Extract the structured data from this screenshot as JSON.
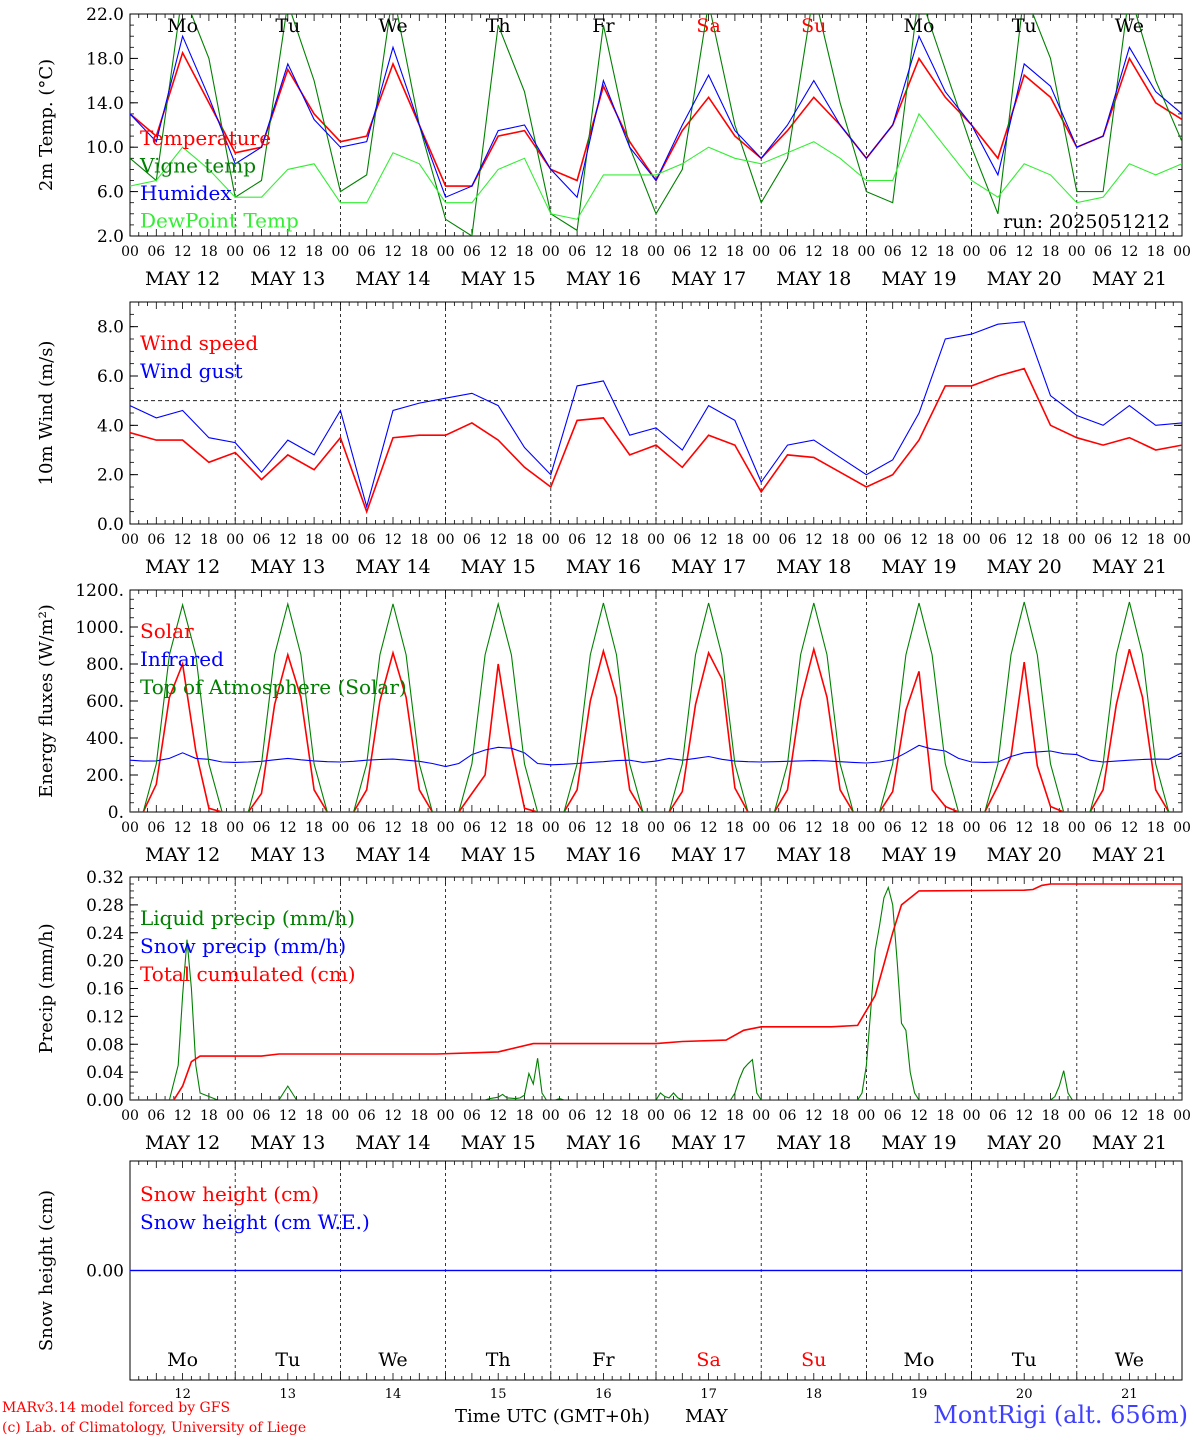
{
  "meta": {
    "run": "run: 2025051212",
    "credit_line1": "MARv3.14 model forced by GFS",
    "credit_line2": "(c) Lab. of Climatology, University of Liege",
    "x_title": "Time UTC (GMT+0h)",
    "month": "MAY",
    "station": "MontRigi (alt. 656m)"
  },
  "colors": {
    "red": "#ff0000",
    "green": "#008000",
    "blue": "#0000ff",
    "lightgreen": "#33ee33",
    "weekend": "#ff0000",
    "station": "#3f3fff"
  },
  "days": {
    "weekday": [
      "Mo",
      "Tu",
      "We",
      "Th",
      "Fr",
      "Sa",
      "Su",
      "Mo",
      "Tu",
      "We"
    ],
    "weekend": [
      false,
      false,
      false,
      false,
      false,
      true,
      true,
      false,
      false,
      false
    ],
    "date_labels": [
      "MAY 12",
      "MAY 13",
      "MAY 14",
      "MAY 15",
      "MAY 16",
      "MAY 17",
      "MAY 18",
      "MAY 19",
      "MAY 20",
      "MAY 21"
    ],
    "day_numbers": [
      "12",
      "13",
      "14",
      "15",
      "16",
      "17",
      "18",
      "19",
      "20",
      "21"
    ],
    "hour_ticks": [
      "00",
      "06",
      "12",
      "18"
    ],
    "end_tick": "00"
  },
  "chart_data": [
    {
      "type": "line",
      "ylabel": "2m Temp. (°C)",
      "ylim": [
        2,
        22
      ],
      "ytick_labels": [
        "2.0",
        "6.0",
        "10.0",
        "14.0",
        "18.0",
        "22.0"
      ],
      "x_unit": "hours since May 12 00 UTC",
      "x": [
        0,
        6,
        12,
        18,
        24,
        30,
        36,
        42,
        48,
        54,
        60,
        66,
        72,
        78,
        84,
        90,
        96,
        102,
        108,
        114,
        120,
        126,
        132,
        138,
        144,
        150,
        156,
        162,
        168,
        174,
        180,
        186,
        192,
        198,
        204,
        210,
        216,
        222,
        228,
        234,
        240
      ],
      "series": [
        {
          "name": "Temperature",
          "color": "red",
          "values": [
            13,
            11,
            18.5,
            14,
            9.5,
            10,
            17,
            13,
            10.5,
            11,
            17.5,
            12,
            6.5,
            6.5,
            11,
            11.5,
            8,
            7,
            15.5,
            10.5,
            7,
            11.5,
            14.5,
            11,
            9,
            11.5,
            14.5,
            12,
            9,
            12,
            18,
            14.5,
            12,
            9,
            16.5,
            14.5,
            10,
            11,
            18,
            14,
            12.5
          ]
        },
        {
          "name": "Vigne temp",
          "color": "green",
          "values": [
            9,
            7,
            24,
            18,
            5.5,
            7,
            23,
            16,
            6,
            7.5,
            24,
            12,
            3.5,
            2,
            21,
            15,
            4,
            2.5,
            21,
            10,
            4,
            8,
            23,
            12,
            5,
            9,
            24,
            14,
            6,
            5,
            24,
            17,
            10,
            4,
            24,
            18,
            6,
            6,
            24,
            16,
            10.5
          ]
        },
        {
          "name": "Humidex",
          "color": "blue",
          "values": [
            13,
            10.5,
            20,
            14.5,
            8.5,
            10,
            17.5,
            12.5,
            10,
            10.5,
            19,
            12,
            5.5,
            6.5,
            11.5,
            12,
            8,
            5.5,
            16,
            10,
            7,
            12,
            16.5,
            11.5,
            9,
            12,
            16,
            12,
            9,
            12,
            20,
            15,
            12,
            7.5,
            17.5,
            15.5,
            10,
            11,
            19,
            15,
            13
          ]
        },
        {
          "name": "DewPoint Temp",
          "color": "lightgreen",
          "values": [
            6.5,
            7,
            10,
            8,
            5.5,
            5.5,
            8,
            8.5,
            5,
            5,
            9.5,
            8.5,
            5,
            5,
            8,
            9,
            4,
            3.5,
            7.5,
            7.5,
            7.5,
            8.5,
            10,
            9,
            8.5,
            9.5,
            10.5,
            9,
            7,
            7,
            13,
            10,
            7,
            5.5,
            8.5,
            7.5,
            5,
            5.5,
            8.5,
            7.5,
            8.5
          ]
        }
      ],
      "legend": [
        "Temperature",
        "Vigne temp",
        "Humidex",
        "DewPoint Temp"
      ],
      "legend_position": "top-left"
    },
    {
      "type": "line",
      "ylabel": "10m Wind (m/s)",
      "ylim": [
        0,
        9
      ],
      "ytick_labels": [
        "0.0",
        "2.0",
        "4.0",
        "6.0",
        "8.0"
      ],
      "reference_line": 5,
      "x_unit": "hours since May 12 00 UTC",
      "x": [
        0,
        6,
        12,
        18,
        24,
        30,
        36,
        42,
        48,
        54,
        60,
        66,
        72,
        78,
        84,
        90,
        96,
        102,
        108,
        114,
        120,
        126,
        132,
        138,
        144,
        150,
        156,
        162,
        168,
        174,
        180,
        186,
        192,
        198,
        204,
        210,
        216,
        222,
        228,
        234,
        240
      ],
      "series": [
        {
          "name": "Wind speed",
          "color": "red",
          "values": [
            3.7,
            3.4,
            3.4,
            2.5,
            2.9,
            1.8,
            2.8,
            2.2,
            3.5,
            0.5,
            3.5,
            3.6,
            3.6,
            4.1,
            3.4,
            2.3,
            1.5,
            4.2,
            4.3,
            2.8,
            3.2,
            2.3,
            3.6,
            3.2,
            1.3,
            2.8,
            2.7,
            2.1,
            1.5,
            2.0,
            3.4,
            5.6,
            5.6,
            6.0,
            6.3,
            4.0,
            3.5,
            3.2,
            3.5,
            3.0,
            3.2
          ]
        },
        {
          "name": "Wind gust",
          "color": "blue",
          "values": [
            4.8,
            4.3,
            4.6,
            3.5,
            3.3,
            2.1,
            3.4,
            2.8,
            4.6,
            0.7,
            4.6,
            4.9,
            5.1,
            5.3,
            4.8,
            3.1,
            2.0,
            5.6,
            5.8,
            3.6,
            3.9,
            3.0,
            4.8,
            4.2,
            1.7,
            3.2,
            3.4,
            2.7,
            2.0,
            2.6,
            4.5,
            7.5,
            7.7,
            8.1,
            8.2,
            5.2,
            4.4,
            4.0,
            4.8,
            4.0,
            4.1
          ]
        }
      ],
      "legend": [
        "Wind speed",
        "Wind gust"
      ],
      "legend_position": "top-left"
    },
    {
      "type": "line",
      "ylabel": "Energy fluxes (W/m²)",
      "ylim": [
        0,
        1200
      ],
      "ytick_labels": [
        "0.",
        "200.",
        "400.",
        "600.",
        "800.",
        "1000.",
        "1200."
      ],
      "x_unit": "hours since May 12 00 UTC",
      "x": [
        0,
        3,
        6,
        9,
        12,
        15,
        18,
        21,
        24,
        27,
        30,
        33,
        36,
        39,
        42,
        45,
        48,
        51,
        54,
        57,
        60,
        63,
        66,
        69,
        72,
        75,
        78,
        81,
        84,
        87,
        90,
        93,
        96,
        99,
        102,
        105,
        108,
        111,
        114,
        117,
        120,
        123,
        126,
        129,
        132,
        135,
        138,
        141,
        144,
        147,
        150,
        153,
        156,
        159,
        162,
        165,
        168,
        171,
        174,
        177,
        180,
        183,
        186,
        189,
        192,
        195,
        198,
        201,
        204,
        207,
        210,
        213,
        216,
        219,
        222,
        225,
        228,
        231,
        234,
        237,
        240
      ],
      "series": [
        {
          "name": "Solar",
          "color": "red",
          "values": [
            0,
            0,
            150,
            620,
            800,
            330,
            20,
            0,
            0,
            0,
            100,
            580,
            850,
            620,
            120,
            0,
            0,
            0,
            120,
            600,
            860,
            620,
            120,
            0,
            0,
            0,
            100,
            200,
            800,
            350,
            20,
            0,
            0,
            0,
            120,
            600,
            870,
            620,
            120,
            0,
            0,
            0,
            110,
            580,
            860,
            720,
            130,
            0,
            0,
            0,
            120,
            600,
            880,
            620,
            120,
            0,
            0,
            0,
            110,
            550,
            760,
            120,
            30,
            0,
            0,
            0,
            140,
            300,
            810,
            250,
            30,
            0,
            0,
            0,
            120,
            580,
            880,
            620,
            120,
            0,
            0
          ]
        },
        {
          "name": "Infrared",
          "color": "blue",
          "values": [
            280,
            275,
            276,
            290,
            320,
            290,
            285,
            270,
            268,
            270,
            274,
            282,
            290,
            282,
            276,
            272,
            270,
            274,
            280,
            284,
            286,
            280,
            274,
            262,
            246,
            262,
            310,
            335,
            350,
            345,
            320,
            262,
            255,
            258,
            262,
            268,
            272,
            278,
            280,
            268,
            275,
            290,
            280,
            290,
            300,
            285,
            275,
            272,
            270,
            272,
            274,
            276,
            278,
            276,
            272,
            268,
            265,
            270,
            282,
            320,
            360,
            340,
            330,
            290,
            270,
            268,
            270,
            300,
            320,
            325,
            330,
            315,
            310,
            280,
            270,
            275,
            280,
            284,
            286,
            285,
            320
          ]
        },
        {
          "name": "Top of Atmosphere (Solar)",
          "color": "green",
          "values": [
            0,
            0,
            260,
            850,
            1120,
            850,
            260,
            0,
            0,
            0,
            260,
            850,
            1125,
            850,
            260,
            0,
            0,
            0,
            260,
            850,
            1125,
            850,
            260,
            0,
            0,
            0,
            260,
            850,
            1125,
            850,
            260,
            0,
            0,
            0,
            260,
            850,
            1130,
            850,
            260,
            0,
            0,
            0,
            260,
            850,
            1130,
            850,
            260,
            0,
            0,
            0,
            260,
            850,
            1130,
            850,
            260,
            0,
            0,
            0,
            260,
            850,
            1130,
            850,
            260,
            0,
            0,
            0,
            260,
            850,
            1135,
            850,
            260,
            0,
            0,
            0,
            260,
            850,
            1135,
            850,
            260,
            0,
            0
          ]
        }
      ],
      "legend": [
        "Solar",
        "Infrared",
        "Top of Atmosphere (Solar)"
      ],
      "legend_position": "top-left"
    },
    {
      "type": "line",
      "ylabel": "Precip (mm/h)",
      "ylim": [
        0,
        0.32
      ],
      "ytick_labels": [
        "0.00",
        "0.04",
        "0.08",
        "0.12",
        "0.16",
        "0.20",
        "0.24",
        "0.28",
        "0.32"
      ],
      "x_unit": "hours since May 12 00 UTC",
      "series": [
        {
          "name": "Liquid precip (mm/h)",
          "color": "green",
          "x": [
            0,
            9,
            11,
            12,
            13,
            14,
            15,
            16,
            20,
            30,
            34,
            35,
            36,
            37,
            38,
            42,
            78,
            81,
            82,
            83,
            84,
            85,
            86,
            88,
            89,
            90,
            91,
            92,
            93,
            94,
            95,
            96,
            97,
            98,
            99,
            120,
            121,
            122,
            123,
            124,
            125,
            126,
            137,
            138,
            139,
            140,
            141,
            142,
            143,
            144,
            145,
            146,
            147,
            148,
            166,
            167,
            168,
            169,
            170,
            171,
            172,
            173,
            174,
            175,
            176,
            177,
            178,
            179,
            180,
            181,
            210,
            211,
            212,
            213,
            214,
            215,
            240
          ],
          "y": [
            0,
            0,
            0.05,
            0.15,
            0.23,
            0.16,
            0.05,
            0.01,
            0,
            0,
            0,
            0.01,
            0.02,
            0.01,
            0,
            0,
            0,
            0,
            0.002,
            0.003,
            0.004,
            0.008,
            0.003,
            0.002,
            0.003,
            0.007,
            0.038,
            0.023,
            0.06,
            0.01,
            0,
            0,
            0,
            0.002,
            0,
            0,
            0.01,
            0.005,
            0.003,
            0.01,
            0.003,
            0,
            0,
            0.01,
            0.03,
            0.045,
            0.052,
            0.058,
            0.01,
            0,
            0,
            0,
            0,
            0,
            0,
            0.01,
            0.05,
            0.13,
            0.215,
            0.25,
            0.29,
            0.305,
            0.28,
            0.2,
            0.11,
            0.1,
            0.04,
            0.01,
            0,
            0,
            0,
            0.005,
            0.02,
            0.042,
            0.01,
            0,
            0
          ]
        },
        {
          "name": "Snow precip (mm/h)",
          "color": "blue",
          "x": [
            0,
            240
          ],
          "y": [
            0,
            0
          ]
        },
        {
          "name": "Total cumulated (cm)",
          "color": "red",
          "x": [
            0,
            10,
            12,
            14,
            16,
            30,
            34,
            70,
            80,
            84,
            86,
            92,
            96,
            120,
            126,
            136,
            140,
            144,
            160,
            166,
            170,
            174,
            176,
            180,
            204,
            206,
            208,
            210,
            240
          ],
          "y": [
            0,
            0,
            0.02,
            0.055,
            0.063,
            0.063,
            0.066,
            0.066,
            0.068,
            0.069,
            0.072,
            0.081,
            0.081,
            0.081,
            0.084,
            0.086,
            0.1,
            0.105,
            0.105,
            0.107,
            0.15,
            0.24,
            0.28,
            0.3,
            0.301,
            0.302,
            0.308,
            0.31,
            0.31
          ]
        }
      ],
      "legend": [
        "Liquid precip (mm/h)",
        "Snow precip (mm/h)",
        "Total cumulated (cm)"
      ],
      "legend_position": "top-left"
    },
    {
      "type": "line",
      "ylabel": "Snow height (cm)",
      "ytick_labels": [
        "0.00"
      ],
      "x_unit": "hours since May 12 00 UTC",
      "series": [
        {
          "name": "Snow height (cm)",
          "color": "red",
          "x": [
            0,
            240
          ],
          "y": [
            0,
            0
          ]
        },
        {
          "name": "Snow height (cm W.E.)",
          "color": "blue",
          "x": [
            0,
            240
          ],
          "y": [
            0,
            0
          ]
        }
      ],
      "legend": [
        "Snow height (cm)",
        "Snow height (cm W.E.)"
      ],
      "legend_position": "top-left"
    }
  ]
}
